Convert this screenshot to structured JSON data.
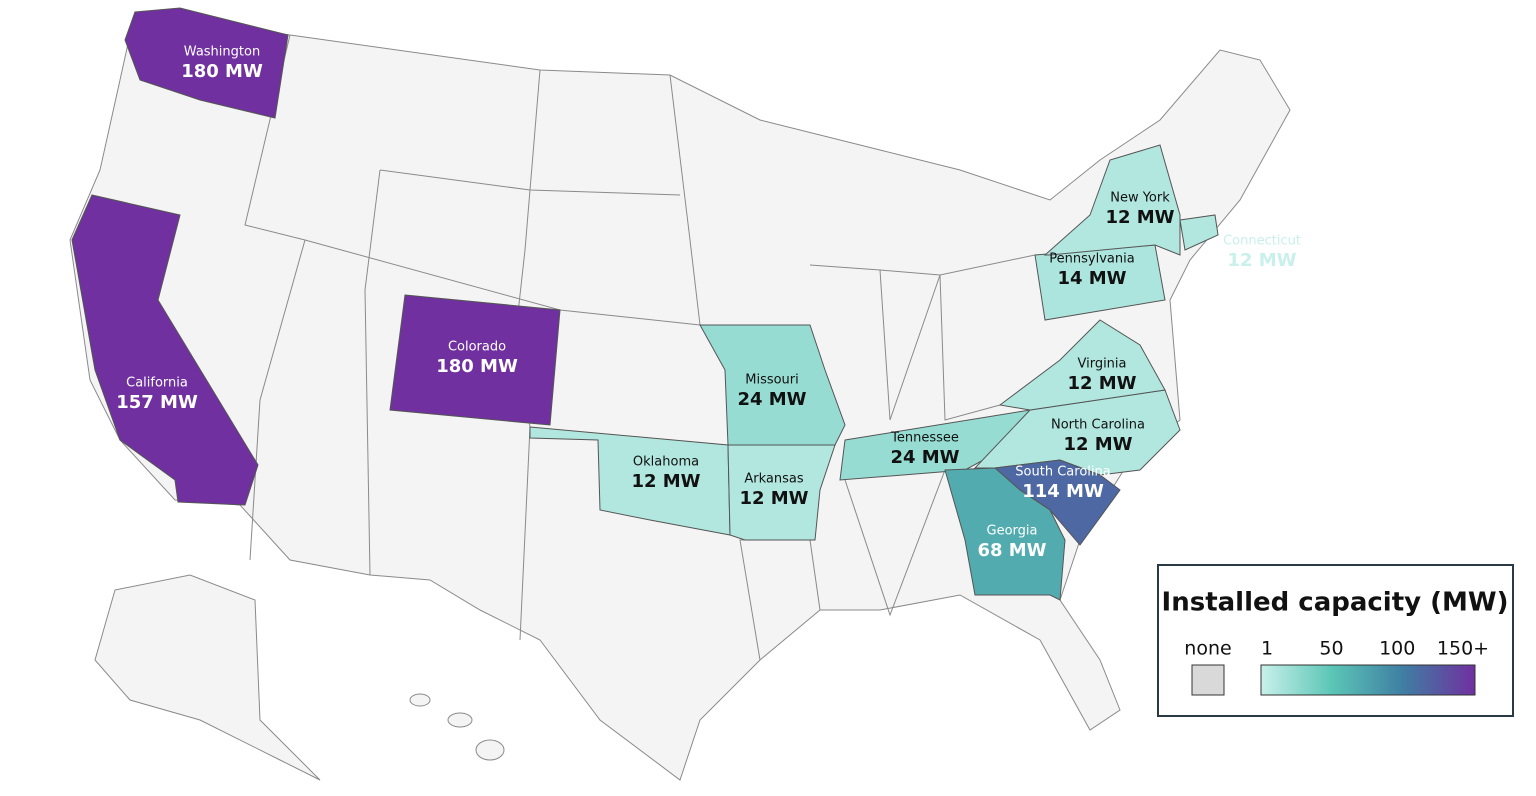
{
  "map": {
    "states": [
      {
        "name": "Washington",
        "value": 180,
        "value_label": "180 MW"
      },
      {
        "name": "California",
        "value": 157,
        "value_label": "157 MW"
      },
      {
        "name": "Colorado",
        "value": 180,
        "value_label": "180 MW"
      },
      {
        "name": "Missouri",
        "value": 24,
        "value_label": "24 MW"
      },
      {
        "name": "Oklahoma",
        "value": 12,
        "value_label": "12 MW"
      },
      {
        "name": "Arkansas",
        "value": 12,
        "value_label": "12 MW"
      },
      {
        "name": "Tennessee",
        "value": 24,
        "value_label": "24 MW"
      },
      {
        "name": "North Carolina",
        "value": 12,
        "value_label": "12 MW"
      },
      {
        "name": "Virginia",
        "value": 12,
        "value_label": "12 MW"
      },
      {
        "name": "South Carolina",
        "value": 114,
        "value_label": "114 MW"
      },
      {
        "name": "Georgia",
        "value": 68,
        "value_label": "68 MW"
      },
      {
        "name": "Pennsylvania",
        "value": 14,
        "value_label": "14 MW"
      },
      {
        "name": "New York",
        "value": 12,
        "value_label": "12 MW"
      },
      {
        "name": "Connecticut",
        "value": 12,
        "value_label": "12 MW"
      }
    ],
    "legend": {
      "title": "Installed capacity (MW)",
      "none_label": "none",
      "none_color": "#d9d9d9",
      "ticks": [
        1,
        50,
        100,
        {
          "value": 150,
          "label": "150+"
        }
      ],
      "colors": [
        "#c9f0eb",
        "#5cc6b6",
        "#3f7ea3",
        "#7030a0"
      ]
    }
  }
}
